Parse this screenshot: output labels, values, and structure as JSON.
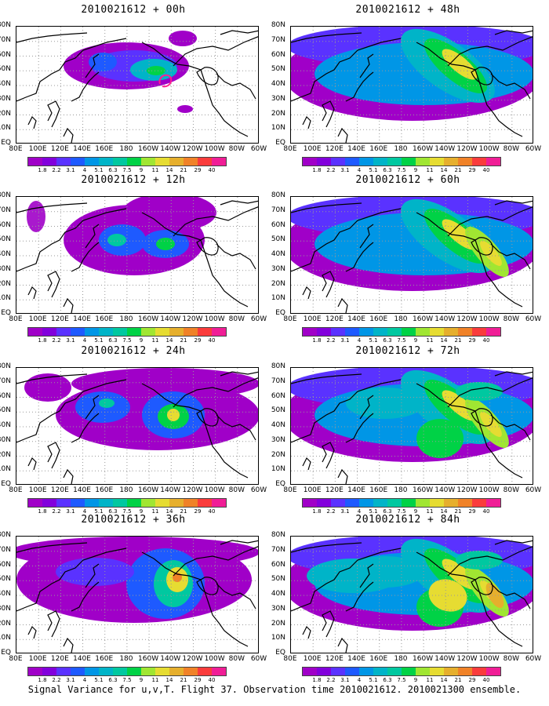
{
  "panels": [
    {
      "title": "2010021612 + 00h",
      "lead": 0
    },
    {
      "title": "2010021612 + 48h",
      "lead": 48
    },
    {
      "title": "2010021612 + 12h",
      "lead": 12
    },
    {
      "title": "2010021612 + 60h",
      "lead": 60
    },
    {
      "title": "2010021612 + 24h",
      "lead": 24
    },
    {
      "title": "2010021612 + 72h",
      "lead": 72
    },
    {
      "title": "2010021612 + 36h",
      "lead": 36
    },
    {
      "title": "2010021612 + 84h",
      "lead": 84
    }
  ],
  "axes": {
    "lat_labels": [
      "80N",
      "70N",
      "60N",
      "50N",
      "40N",
      "30N",
      "20N",
      "10N",
      "EQ"
    ],
    "lon_labels": [
      "80E",
      "100E",
      "120E",
      "140E",
      "160E",
      "180",
      "160W",
      "140W",
      "120W",
      "100W",
      "80W",
      "60W"
    ]
  },
  "colorbar": {
    "levels": [
      "1.8",
      "2.2",
      "3.1",
      "4",
      "5.1",
      "6.3",
      "7.5",
      "9",
      "11",
      "14",
      "21",
      "29",
      "40"
    ],
    "colors": [
      "#a000c8",
      "#8200dc",
      "#5a32ff",
      "#1e5aff",
      "#0096e6",
      "#00b4c8",
      "#00c8a0",
      "#00d246",
      "#a0e632",
      "#e6dc32",
      "#e6af2d",
      "#f08228",
      "#fa3c3c",
      "#f01e96"
    ]
  },
  "caption": "Signal Variance for u,v,T. Flight 37. Observation time 2010021612. 2010021300 ensemble."
}
